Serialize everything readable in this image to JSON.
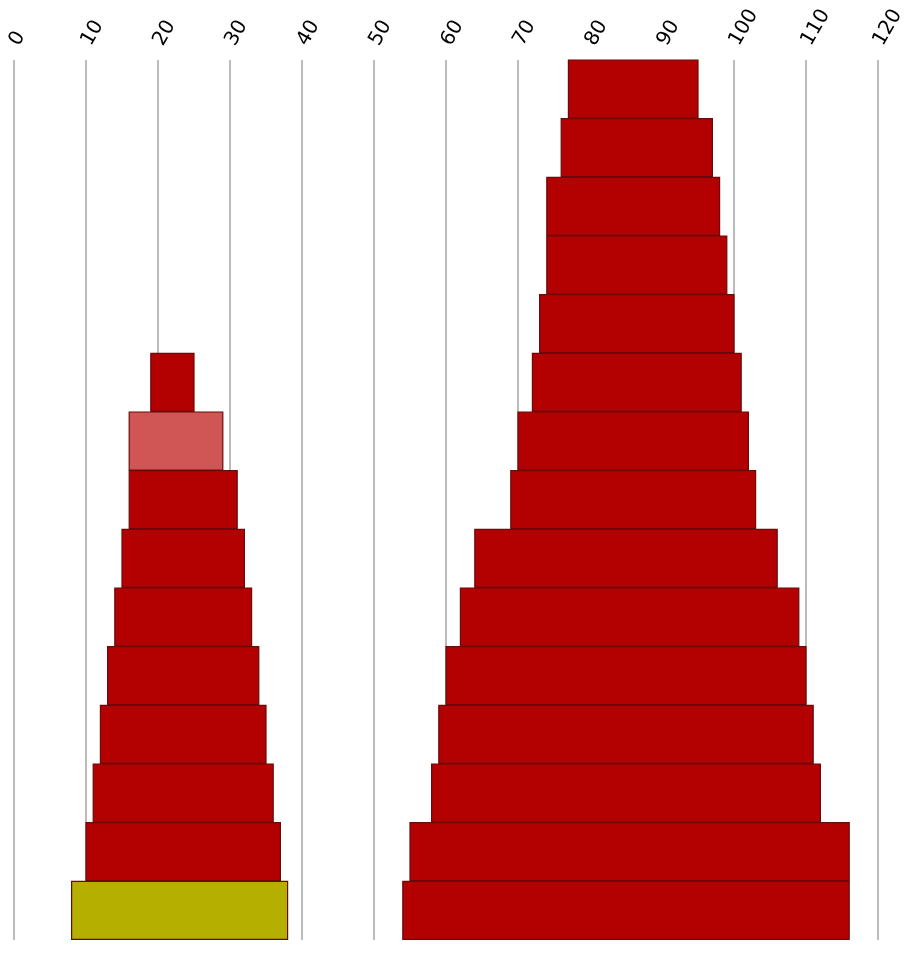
{
  "chart_data": {
    "type": "bar",
    "orientation": "horizontal",
    "categories": [
      null,
      null,
      null,
      null,
      null,
      null,
      null,
      null,
      null,
      null,
      null,
      null,
      null,
      null,
      null
    ],
    "series": [
      {
        "values": [
          null,
          null,
          null,
          null,
          null,
          6,
          13,
          15,
          17,
          19,
          21,
          23,
          25,
          27,
          30
        ],
        "base": [
          null,
          null,
          null,
          null,
          null,
          19,
          16,
          16,
          15,
          14,
          13,
          12,
          11,
          10,
          8
        ],
        "colors": [
          null,
          null,
          null,
          null,
          null,
          "#b30000",
          "#d05656",
          "#b30000",
          "#b30000",
          "#b30000",
          "#b30000",
          "#b30000",
          "#b30000",
          "#b30000",
          "#b5b000"
        ]
      },
      {
        "values": [
          18,
          21,
          24,
          25,
          27,
          29,
          32,
          34,
          42,
          47,
          50,
          52,
          54,
          61,
          62
        ],
        "base": [
          77,
          76,
          74,
          74,
          73,
          72,
          70,
          69,
          64,
          62,
          60,
          59,
          58,
          55,
          54
        ],
        "color": "#b30000"
      }
    ],
    "xlim": [
      0,
      120
    ],
    "xticks": [
      0,
      10,
      20,
      30,
      40,
      50,
      60,
      70,
      80,
      90,
      100,
      110,
      120
    ],
    "grid": "x"
  }
}
